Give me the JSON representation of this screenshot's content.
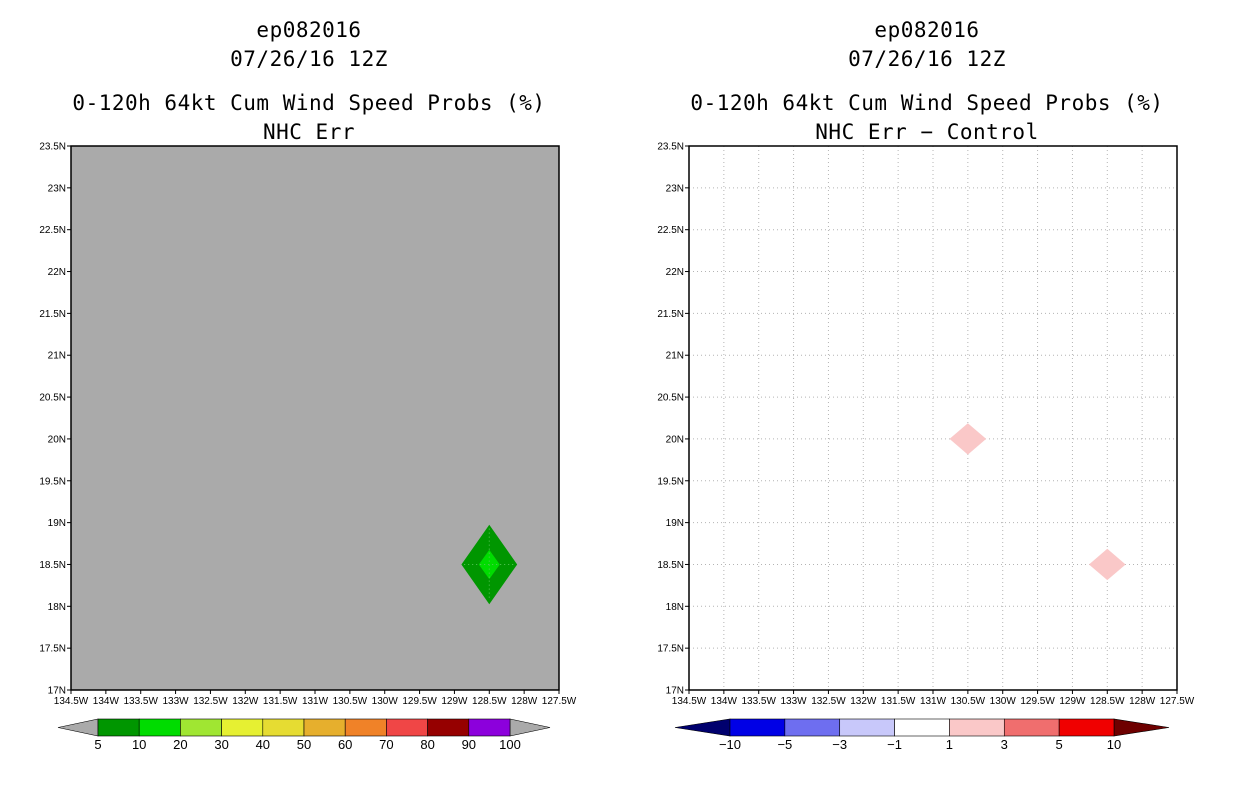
{
  "panels": [
    {
      "title_storm": "ep082016",
      "title_time": "07/26/16 12Z",
      "title_product": "0-120h 64kt Cum Wind Speed Probs (%)",
      "title_sub": "NHC Err",
      "background_color": "#aaaaaa",
      "colorbar": {
        "labels": [
          "5",
          "10",
          "20",
          "30",
          "40",
          "50",
          "60",
          "70",
          "80",
          "90",
          "100"
        ],
        "colors": [
          "#009600",
          "#00dc00",
          "#a0e632",
          "#e6f032",
          "#e6dc32",
          "#e6af2d",
          "#f08228",
          "#f04646",
          "#960000",
          "#8c00dc"
        ],
        "under_color": "#aaaaaa",
        "over_color": "#aaaaaa"
      }
    },
    {
      "title_storm": "ep082016",
      "title_time": "07/26/16 12Z",
      "title_product": "0-120h 64kt Cum Wind Speed Probs (%)",
      "title_sub": "NHC Err − Control",
      "background_color": "#ffffff",
      "colorbar": {
        "labels": [
          "−10",
          "−5",
          "−3",
          "−1",
          "1",
          "3",
          "5",
          "10"
        ],
        "colors": [
          "#0000e6",
          "#6e6ef0",
          "#c8c8fa",
          "#ffffff",
          "#fac8c8",
          "#f06e6e",
          "#f00000"
        ],
        "under_color": "#00006e",
        "over_color": "#6e0000"
      }
    }
  ],
  "chart_data": [
    {
      "type": "heatmap",
      "title": "0-120h 64kt Cum Wind Speed Probs (%)",
      "subtitle": "NHC Err",
      "storm": "ep082016",
      "time": "07/26/16 12Z",
      "xlim": [
        -134.5,
        -127.5
      ],
      "ylim": [
        17,
        23.5
      ],
      "x_ticks": [
        "134.5W",
        "134W",
        "133.5W",
        "133W",
        "132.5W",
        "132W",
        "131.5W",
        "131W",
        "130.5W",
        "130W",
        "129.5W",
        "129W",
        "128.5W",
        "128W",
        "127.5W"
      ],
      "y_ticks": [
        "17N",
        "17.5N",
        "18N",
        "18.5N",
        "19N",
        "19.5N",
        "20N",
        "20.5N",
        "21N",
        "21.5N",
        "22N",
        "22.5N",
        "23N",
        "23.5N"
      ],
      "grid": false,
      "features": [
        {
          "lon": -128.5,
          "lat": 18.5,
          "outer_value_range": [
            5,
            10
          ],
          "inner_value_range": [
            10,
            20
          ],
          "color": "#009600",
          "inner_color": "#00dc00"
        }
      ]
    },
    {
      "type": "heatmap",
      "title": "0-120h 64kt Cum Wind Speed Probs (%)",
      "subtitle": "NHC Err − Control",
      "storm": "ep082016",
      "time": "07/26/16 12Z",
      "xlim": [
        -134.5,
        -127.5
      ],
      "ylim": [
        17,
        23.5
      ],
      "x_ticks": [
        "134.5W",
        "134W",
        "133.5W",
        "133W",
        "132.5W",
        "132W",
        "131.5W",
        "131W",
        "130.5W",
        "130W",
        "129.5W",
        "129W",
        "128.5W",
        "128W",
        "127.5W"
      ],
      "y_ticks": [
        "17N",
        "17.5N",
        "18N",
        "18.5N",
        "19N",
        "19.5N",
        "20N",
        "20.5N",
        "21N",
        "21.5N",
        "22N",
        "22.5N",
        "23N",
        "23.5N"
      ],
      "grid": true,
      "features": [
        {
          "lon": -130.5,
          "lat": 20.0,
          "value_range": [
            1,
            3
          ],
          "color": "#fac8c8"
        },
        {
          "lon": -128.5,
          "lat": 18.5,
          "value_range": [
            1,
            3
          ],
          "color": "#fac8c8"
        }
      ]
    }
  ]
}
